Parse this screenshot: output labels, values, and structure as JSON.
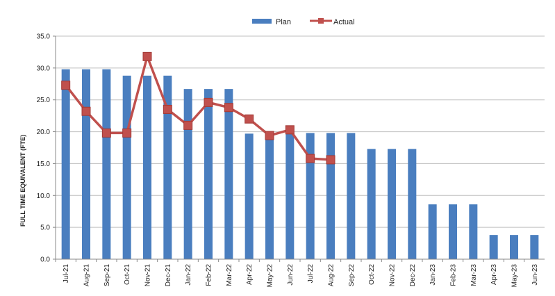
{
  "chart_data": {
    "type": "bar",
    "categories": [
      "Jul-21",
      "Aug-21",
      "Sep-21",
      "Oct-21",
      "Nov-21",
      "Dec-21",
      "Jan-22",
      "Feb-22",
      "Mar-22",
      "Apr-22",
      "May-22",
      "Jun-22",
      "Jul-22",
      "Aug-22",
      "Sep-22",
      "Oct-22",
      "Nov-22",
      "Dec-22",
      "Jan-23",
      "Feb-23",
      "Mar-23",
      "Apr-23",
      "May-23",
      "Jun-23"
    ],
    "series": [
      {
        "name": "Plan",
        "type": "bar",
        "color": "#4a7ebf",
        "values": [
          29.8,
          29.8,
          29.8,
          28.8,
          28.8,
          28.8,
          26.7,
          26.7,
          26.7,
          19.7,
          19.7,
          19.7,
          19.8,
          19.8,
          19.8,
          17.3,
          17.3,
          17.3,
          8.6,
          8.6,
          8.6,
          3.8,
          3.8,
          3.8
        ]
      },
      {
        "name": "Actual",
        "type": "line",
        "color": "#c0504d",
        "values": [
          27.3,
          23.2,
          19.8,
          19.8,
          31.8,
          23.5,
          21.0,
          24.6,
          23.8,
          22.0,
          19.4,
          20.3,
          15.8,
          15.6,
          null,
          null,
          null,
          null,
          null,
          null,
          null,
          null,
          null,
          null
        ]
      }
    ],
    "ylabel": "FULL TIME EQUIVALENT (FTE)",
    "ylim": [
      0,
      35
    ],
    "yticks": [
      "0.0",
      "5.0",
      "10.0",
      "15.0",
      "20.0",
      "25.0",
      "30.0",
      "35.0"
    ],
    "grid": true,
    "legend": "top-center"
  }
}
